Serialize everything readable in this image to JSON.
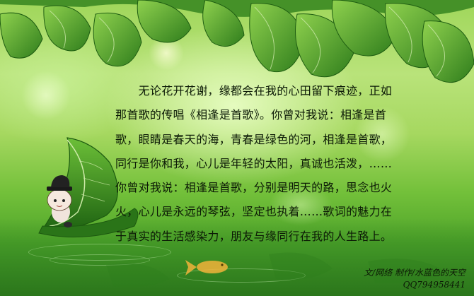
{
  "poem": {
    "lines": [
      "　　无论花开花谢，缘都会在我的心田留下痕迹，正如",
      "那首歌的传唱《相逢是首歌》。你曾对我说：相逢是首",
      "歌，眼睛是春天的海，青春是绿色的河，相逢是首歌，",
      "同行是你和我，心儿是年轻的太阳，真诚也活泼，……",
      "你曾对我说：相逢是首歌，分别是明天的路，思念也火",
      "火，心儿是永远的琴弦，坚定也执着……歌词的魅力在",
      "于真实的生活感染力，朋友与缘同行在我的人生路上。"
    ]
  },
  "credit": {
    "author": "文/网络 制作/水蓝色的天空",
    "qq": "QQ794958441"
  },
  "illustration": {
    "icons": [
      "leaf-cluster-icon",
      "leaf-boat-icon",
      "hat-figure-icon",
      "goldfish-icon"
    ],
    "colors": {
      "leaf_dark": "#2f7d1c",
      "leaf_light": "#7cc443",
      "vein": "#d9f0b8",
      "fish": "#f2b33a"
    }
  }
}
